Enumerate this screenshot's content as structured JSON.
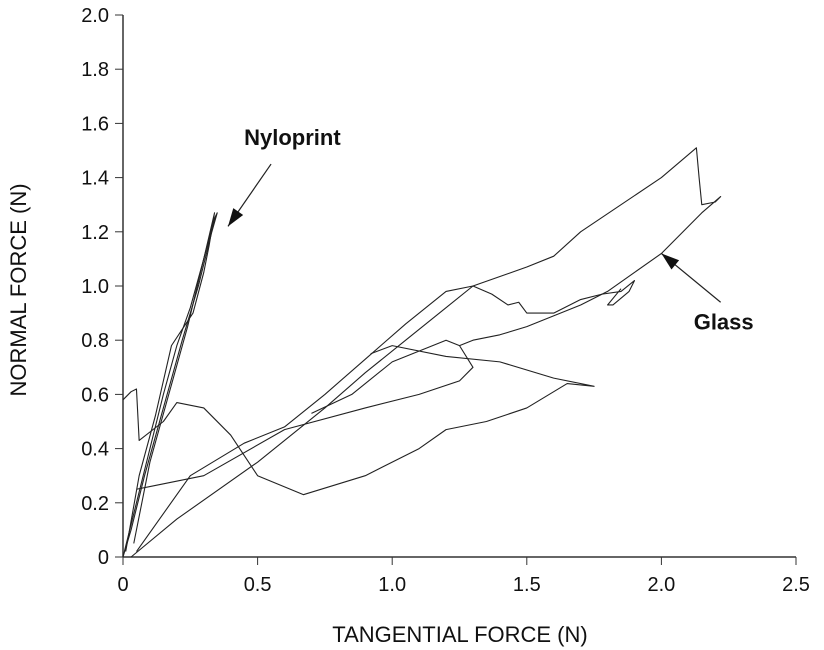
{
  "chart_data": {
    "type": "line",
    "title": "",
    "xlabel": "TANGENTIAL FORCE (N)",
    "ylabel": "NORMAL FORCE (N)",
    "xlim": [
      0,
      2.5
    ],
    "ylim": [
      0,
      2.0
    ],
    "xticks": [
      "0",
      "0.5",
      "1.0",
      "1.5",
      "2.0",
      "2.5"
    ],
    "yticks": [
      "0",
      "0.2",
      "0.4",
      "0.6",
      "0.8",
      "1.0",
      "1.2",
      "1.4",
      "1.6",
      "1.8",
      "2.0"
    ],
    "grid": false,
    "line_color": "#222222",
    "annotations": [
      {
        "text": "Nyloprint",
        "at": [
          0.45,
          1.52
        ],
        "arrow_from": [
          0.55,
          1.45
        ],
        "arrow_to": [
          0.39,
          1.22
        ]
      },
      {
        "text": "Glass",
        "at": [
          2.12,
          0.84
        ],
        "arrow_from": [
          2.22,
          0.94
        ],
        "arrow_to": [
          2.0,
          1.12
        ]
      }
    ],
    "series": [
      {
        "group": "Nyloprint",
        "points": [
          [
            0,
            0
          ],
          [
            0.05,
            0.2
          ],
          [
            0.1,
            0.4
          ],
          [
            0.15,
            0.6
          ],
          [
            0.2,
            0.78
          ],
          [
            0.25,
            0.92
          ],
          [
            0.3,
            1.1
          ],
          [
            0.34,
            1.25
          ],
          [
            0.35,
            1.27
          ],
          [
            0.33,
            1.2
          ],
          [
            0.28,
            1.0
          ],
          [
            0.22,
            0.8
          ],
          [
            0.15,
            0.55
          ],
          [
            0.08,
            0.3
          ],
          [
            0.03,
            0.1
          ],
          [
            0,
            0
          ]
        ]
      },
      {
        "group": "Nyloprint",
        "points": [
          [
            0.01,
            0.02
          ],
          [
            0.06,
            0.3
          ],
          [
            0.12,
            0.52
          ],
          [
            0.18,
            0.78
          ],
          [
            0.22,
            0.84
          ],
          [
            0.26,
            0.9
          ],
          [
            0.3,
            1.05
          ],
          [
            0.32,
            1.15
          ],
          [
            0.34,
            1.27
          ],
          [
            0.3,
            1.1
          ],
          [
            0.24,
            0.85
          ],
          [
            0.17,
            0.6
          ],
          [
            0.1,
            0.35
          ],
          [
            0.04,
            0.05
          ]
        ]
      },
      {
        "group": "Glass",
        "points": [
          [
            0.03,
            0
          ],
          [
            0.2,
            0.14
          ],
          [
            0.5,
            0.35
          ],
          [
            0.75,
            0.55
          ],
          [
            0.9,
            0.68
          ],
          [
            1.05,
            0.8
          ],
          [
            1.2,
            0.92
          ],
          [
            1.3,
            1.0
          ],
          [
            1.5,
            1.07
          ],
          [
            1.6,
            1.11
          ],
          [
            1.7,
            1.2
          ],
          [
            2.0,
            1.4
          ],
          [
            2.13,
            1.51
          ],
          [
            2.14,
            1.4
          ],
          [
            2.15,
            1.3
          ],
          [
            2.2,
            1.31
          ],
          [
            2.22,
            1.33
          ],
          [
            2.15,
            1.27
          ],
          [
            2.0,
            1.12
          ],
          [
            1.9,
            1.05
          ],
          [
            1.8,
            0.98
          ],
          [
            1.7,
            0.93
          ],
          [
            1.5,
            0.85
          ],
          [
            1.4,
            0.82
          ],
          [
            1.3,
            0.8
          ],
          [
            1.25,
            0.78
          ]
        ]
      },
      {
        "group": "Glass",
        "points": [
          [
            0.05,
            0.02
          ],
          [
            0.25,
            0.3
          ],
          [
            0.45,
            0.42
          ],
          [
            0.6,
            0.48
          ],
          [
            0.75,
            0.6
          ],
          [
            0.9,
            0.73
          ],
          [
            1.05,
            0.86
          ],
          [
            1.2,
            0.98
          ],
          [
            1.3,
            1.0
          ],
          [
            1.37,
            0.97
          ],
          [
            1.43,
            0.93
          ],
          [
            1.47,
            0.94
          ],
          [
            1.5,
            0.9
          ],
          [
            1.6,
            0.9
          ],
          [
            1.7,
            0.95
          ],
          [
            1.78,
            0.97
          ],
          [
            1.85,
            0.98
          ],
          [
            1.9,
            1.02
          ],
          [
            1.88,
            0.98
          ],
          [
            1.82,
            0.93
          ],
          [
            1.8,
            0.93
          ],
          [
            1.85,
            0.99
          ]
        ]
      },
      {
        "group": "Glass",
        "points": [
          [
            0.05,
            0.25
          ],
          [
            0.1,
            0.26
          ],
          [
            0.3,
            0.3
          ],
          [
            0.6,
            0.47
          ],
          [
            0.9,
            0.55
          ],
          [
            1.1,
            0.6
          ],
          [
            1.25,
            0.65
          ],
          [
            1.3,
            0.7
          ],
          [
            1.25,
            0.78
          ],
          [
            1.2,
            0.8
          ],
          [
            1.0,
            0.72
          ],
          [
            0.85,
            0.6
          ],
          [
            0.7,
            0.53
          ]
        ]
      },
      {
        "group": "Glass",
        "points": [
          [
            0.0,
            0.58
          ],
          [
            0.03,
            0.61
          ],
          [
            0.05,
            0.62
          ],
          [
            0.06,
            0.43
          ],
          [
            0.15,
            0.5
          ],
          [
            0.2,
            0.57
          ],
          [
            0.3,
            0.55
          ],
          [
            0.4,
            0.45
          ],
          [
            0.5,
            0.3
          ],
          [
            0.67,
            0.23
          ],
          [
            0.9,
            0.3
          ],
          [
            1.1,
            0.4
          ],
          [
            1.2,
            0.47
          ],
          [
            1.35,
            0.5
          ],
          [
            1.5,
            0.55
          ],
          [
            1.65,
            0.64
          ],
          [
            1.75,
            0.63
          ],
          [
            1.6,
            0.66
          ],
          [
            1.4,
            0.72
          ],
          [
            1.2,
            0.74
          ],
          [
            1.0,
            0.78
          ],
          [
            0.92,
            0.75
          ]
        ]
      }
    ]
  }
}
